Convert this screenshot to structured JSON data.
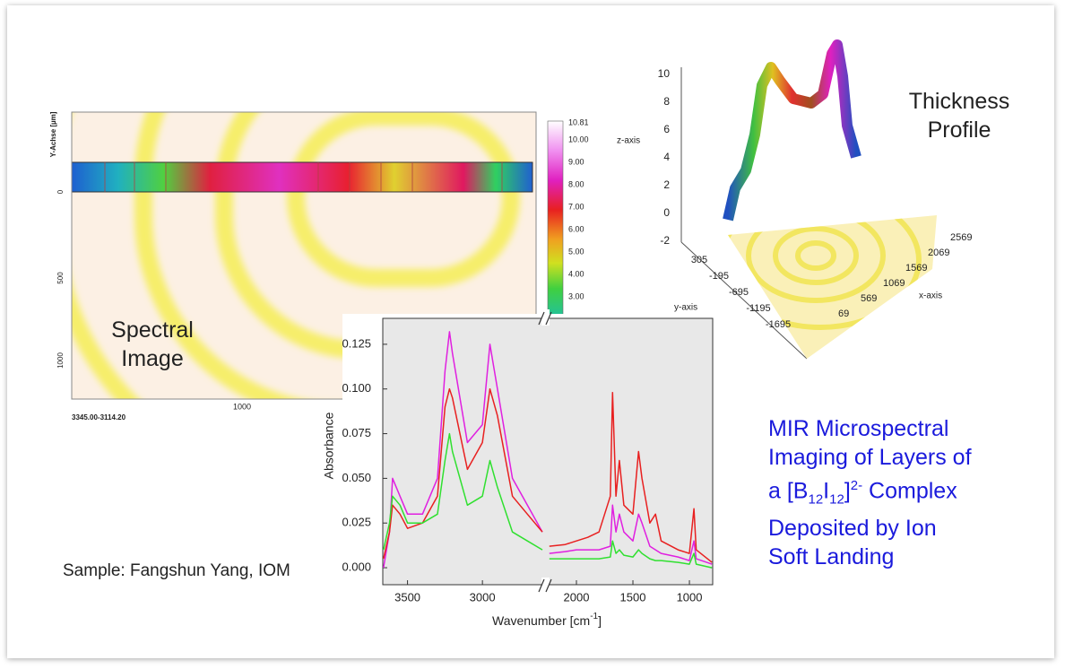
{
  "slide": {
    "spectral_image": {
      "label": [
        "Spectral",
        "Image"
      ],
      "y_axis": "Y-Achse [µm]",
      "y_ticks": [
        "0",
        "500",
        "1000"
      ],
      "x_ticks": [
        "1000"
      ],
      "range": "3345.00-3114.20",
      "colorbar": [
        "10.81",
        "10.00",
        "9.00",
        "8.00",
        "7.00",
        "6.00",
        "5.00",
        "4.00",
        "3.00"
      ]
    },
    "thickness_profile": {
      "label": [
        "Thickness",
        "Profile"
      ],
      "z_axis": "z-axis",
      "y_axis": "y-axis",
      "x_axis": "x-axis",
      "z_ticks": [
        "10",
        "8",
        "6",
        "4",
        "2",
        "0",
        "-2"
      ],
      "y_ticks": [
        "305",
        "-195",
        "-695",
        "-1195",
        "-1695"
      ],
      "x_ticks": [
        "69",
        "569",
        "1069",
        "1569",
        "2069",
        "2569"
      ]
    },
    "sample": "Sample: Fangshun Yang, IOM",
    "description": {
      "line1": "MIR Microspectral",
      "line2": "Imaging of Layers of",
      "line3": [
        "a [B",
        "12",
        "I",
        "12",
        "]",
        "2-",
        " Complex"
      ],
      "line4": "Deposited by Ion",
      "line5": "Soft Landing"
    }
  },
  "chart_data": {
    "type": "line",
    "xlabel": [
      "Wavenumber [cm",
      "-1",
      "]"
    ],
    "ylabel": "Absorbance",
    "x": [
      3660,
      3620,
      3600,
      3550,
      3500,
      3400,
      3300,
      3250,
      3220,
      3200,
      3100,
      3000,
      2950,
      2900,
      2800,
      2700,
      2600,
      2400,
      2240,
      2100,
      2000,
      1900,
      1800,
      1700,
      1680,
      1650,
      1620,
      1580,
      1500,
      1450,
      1420,
      1350,
      1300,
      1250,
      1100,
      1000,
      960,
      940,
      800
    ],
    "x_segments": [
      [
        3665,
        2600
      ],
      [
        2246,
        794
      ]
    ],
    "xticks": [
      3500,
      3000,
      2000,
      1500,
      1000
    ],
    "ylim": [
      -0.0095,
      0.1395
    ],
    "yticks": [
      {
        "value": 0,
        "label": "0.000"
      },
      {
        "value": 0.025,
        "label": "0.025"
      },
      {
        "value": 0.05,
        "label": "0.050"
      },
      {
        "value": 0.075,
        "label": "0.075"
      },
      {
        "value": 0.1,
        "label": "0.100"
      },
      {
        "value": 0.125,
        "label": "0.125"
      }
    ],
    "series": [
      {
        "color": "#e020e0",
        "values": [
          0.0,
          0.02,
          0.05,
          0.04,
          0.03,
          0.03,
          0.05,
          0.11,
          0.132,
          0.12,
          0.07,
          0.08,
          0.125,
          0.1,
          0.05,
          0.035,
          0.02,
          null,
          0.008,
          0.009,
          0.01,
          0.01,
          0.01,
          0.012,
          0.035,
          0.02,
          0.03,
          0.02,
          0.015,
          0.03,
          0.025,
          0.012,
          0.01,
          0.008,
          0.006,
          0.004,
          0.015,
          0.005,
          0.002
        ]
      },
      {
        "color": "#e82020",
        "values": [
          0.005,
          0.02,
          0.035,
          0.03,
          0.022,
          0.025,
          0.04,
          0.09,
          0.1,
          0.095,
          0.055,
          0.07,
          0.1,
          0.085,
          0.04,
          0.03,
          0.02,
          null,
          0.012,
          0.013,
          0.015,
          0.017,
          0.02,
          0.04,
          0.098,
          0.04,
          0.06,
          0.035,
          0.03,
          0.065,
          0.05,
          0.025,
          0.03,
          0.015,
          0.01,
          0.008,
          0.033,
          0.01,
          0.003
        ]
      },
      {
        "color": "#30e030",
        "values": [
          0.01,
          0.025,
          0.04,
          0.035,
          0.025,
          0.025,
          0.03,
          0.06,
          0.075,
          0.065,
          0.035,
          0.04,
          0.06,
          0.045,
          0.02,
          0.015,
          0.01,
          null,
          0.005,
          0.005,
          0.005,
          0.005,
          0.005,
          0.006,
          0.015,
          0.008,
          0.01,
          0.007,
          0.006,
          0.01,
          0.008,
          0.005,
          0.004,
          0.004,
          0.003,
          0.002,
          0.008,
          0.002,
          0.0
        ]
      }
    ]
  }
}
